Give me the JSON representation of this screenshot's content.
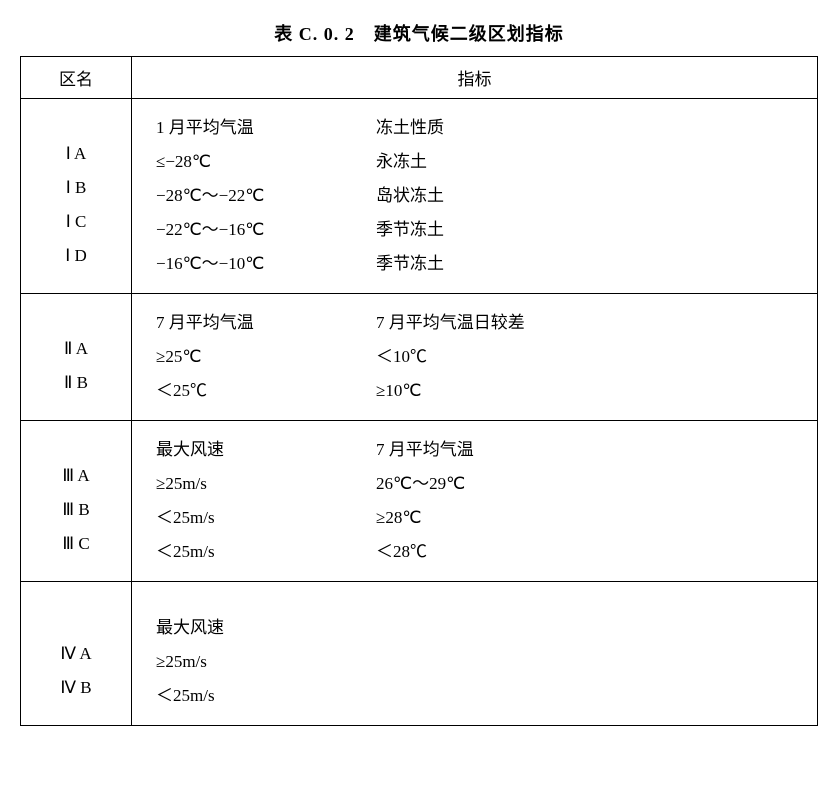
{
  "title": "表 C. 0. 2　建筑气候二级区划指标",
  "header": {
    "zone": "区名",
    "metric": "指标"
  },
  "sections": [
    {
      "zones": [
        "Ⅰ A",
        "Ⅰ B",
        "Ⅰ C",
        "Ⅰ D"
      ],
      "col1_header": "1 月平均气温",
      "col1_values": [
        "≤−28℃",
        "−28℃～−22℃",
        "−22℃～−16℃",
        "−16℃～−10℃"
      ],
      "col2_header": "冻土性质",
      "col2_values": [
        "永冻土",
        "岛状冻土",
        "季节冻土",
        "季节冻土"
      ]
    },
    {
      "zones": [
        "Ⅱ A",
        "Ⅱ B"
      ],
      "col1_header": "7 月平均气温",
      "col1_values": [
        "≥25℃",
        "＜25℃"
      ],
      "col2_header": "7 月平均气温日较差",
      "col2_values": [
        "＜10℃",
        "≥10℃"
      ]
    },
    {
      "zones": [
        "Ⅲ A",
        "Ⅲ B",
        "Ⅲ C"
      ],
      "col1_header": "最大风速",
      "col1_values": [
        "≥25m/s",
        "＜25m/s",
        "＜25m/s"
      ],
      "col2_header": "7 月平均气温",
      "col2_values": [
        "26℃～29℃",
        "≥28℃",
        "＜28℃"
      ]
    },
    {
      "zones": [
        "Ⅳ A",
        "Ⅳ B"
      ],
      "col1_header": "最大风速",
      "col1_values": [
        "≥25m/s",
        "＜25m/s"
      ],
      "col2_header": "",
      "col2_values": []
    }
  ]
}
